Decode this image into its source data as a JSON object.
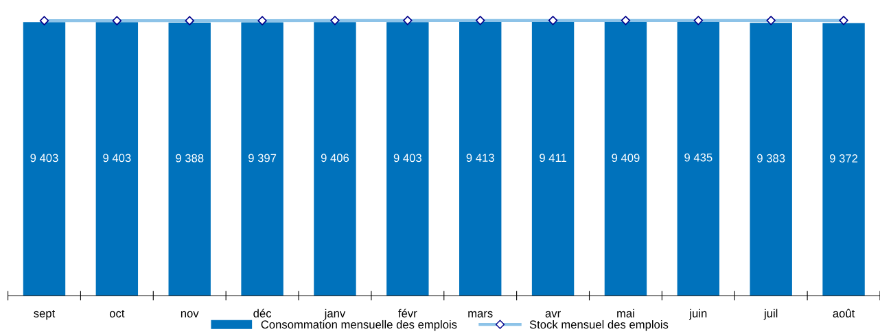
{
  "chart_data": {
    "type": "bar",
    "categories": [
      "sept",
      "oct",
      "nov",
      "déc",
      "janv",
      "févr",
      "mars",
      "avr",
      "mai",
      "juin",
      "juil",
      "août"
    ],
    "series": [
      {
        "name": "Consommation mensuelle des emplois",
        "color": "#0072bc",
        "values": [
          9403,
          9403,
          9388,
          9397,
          9406,
          9403,
          9413,
          9411,
          9409,
          9435,
          9383,
          9372
        ],
        "value_labels": [
          "9 403",
          "9 403",
          "9 388",
          "9 397",
          "9 406",
          "9 403",
          "9 413",
          "9 411",
          "9 409",
          "9 435",
          "9 383",
          "9 372"
        ]
      },
      {
        "name": "Stock mensuel des emplois",
        "type": "line",
        "color": "#8dc3e8",
        "marker": "diamond",
        "values": [
          9454,
          9454,
          9454,
          9454,
          9461,
          9461,
          9461,
          9461,
          9461,
          9461,
          9461,
          9461
        ]
      }
    ],
    "tick_labels": "x",
    "legend": "bottom"
  }
}
